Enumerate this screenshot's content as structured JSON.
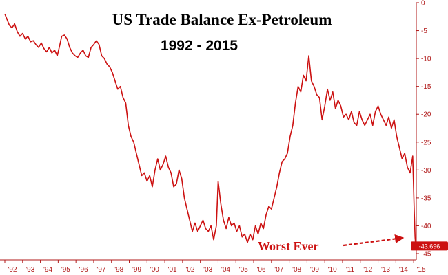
{
  "chart_data": {
    "type": "line",
    "title": "US Trade Balance Ex-Petroleum",
    "subtitle": "1992 - 2015",
    "xlabel": "",
    "ylabel": "",
    "xlim": [
      1992.0,
      2015.15
    ],
    "ylim": [
      -45,
      0
    ],
    "y_ticks": [
      0,
      -5,
      -10,
      -15,
      -20,
      -25,
      -30,
      -35,
      -40,
      -45
    ],
    "x_ticks": [
      {
        "label": "'92",
        "x": 1992.0
      },
      {
        "label": "'93",
        "x": 1993.0
      },
      {
        "label": "'94",
        "x": 1994.0
      },
      {
        "label": "'95",
        "x": 1995.0
      },
      {
        "label": "'96",
        "x": 1996.0
      },
      {
        "label": "'97",
        "x": 1997.0
      },
      {
        "label": "'98",
        "x": 1998.0
      },
      {
        "label": "'99",
        "x": 1999.0
      },
      {
        "label": "'00",
        "x": 2000.0
      },
      {
        "label": "'01",
        "x": 2001.0
      },
      {
        "label": "'02",
        "x": 2002.0
      },
      {
        "label": "'03",
        "x": 2003.0
      },
      {
        "label": "'04",
        "x": 2004.0
      },
      {
        "label": "'05",
        "x": 2005.0
      },
      {
        "label": "'06",
        "x": 2006.0
      },
      {
        "label": "'07",
        "x": 2007.0
      },
      {
        "label": "'08",
        "x": 2008.0
      },
      {
        "label": "'09",
        "x": 2009.0
      },
      {
        "label": "'10",
        "x": 2010.0
      },
      {
        "label": "'11",
        "x": 2011.0
      },
      {
        "label": "'12",
        "x": 2012.0
      },
      {
        "label": "'13",
        "x": 2013.0
      },
      {
        "label": "'14",
        "x": 2014.0
      },
      {
        "label": "'15",
        "x": 2015.0
      }
    ],
    "grid": false,
    "series": [
      {
        "name": "US Trade Balance Ex-Petroleum",
        "color": "#cc1111",
        "x": [
          1992.0,
          1992.1,
          1992.25,
          1992.4,
          1992.55,
          1992.7,
          1992.85,
          1993.0,
          1993.15,
          1993.3,
          1993.45,
          1993.6,
          1993.75,
          1993.9,
          1994.05,
          1994.2,
          1994.35,
          1994.5,
          1994.65,
          1994.8,
          1994.95,
          1995.1,
          1995.2,
          1995.35,
          1995.5,
          1995.65,
          1995.8,
          1995.95,
          1996.1,
          1996.25,
          1996.4,
          1996.55,
          1996.7,
          1996.85,
          1997.0,
          1997.15,
          1997.3,
          1997.45,
          1997.6,
          1997.75,
          1997.9,
          1998.05,
          1998.2,
          1998.35,
          1998.5,
          1998.65,
          1998.8,
          1998.95,
          1999.1,
          1999.25,
          1999.4,
          1999.55,
          1999.7,
          1999.85,
          2000.0,
          2000.15,
          2000.3,
          2000.45,
          2000.6,
          2000.75,
          2000.9,
          2001.05,
          2001.2,
          2001.35,
          2001.5,
          2001.65,
          2001.8,
          2001.95,
          2002.1,
          2002.25,
          2002.4,
          2002.55,
          2002.7,
          2002.85,
          2003.0,
          2003.15,
          2003.3,
          2003.45,
          2003.6,
          2003.75,
          2003.9,
          2004.0,
          2004.15,
          2004.3,
          2004.45,
          2004.6,
          2004.75,
          2004.9,
          2005.05,
          2005.2,
          2005.35,
          2005.5,
          2005.65,
          2005.8,
          2005.95,
          2006.1,
          2006.25,
          2006.4,
          2006.55,
          2006.7,
          2006.85,
          2007.0,
          2007.15,
          2007.3,
          2007.45,
          2007.6,
          2007.75,
          2007.9,
          2008.05,
          2008.2,
          2008.35,
          2008.5,
          2008.65,
          2008.8,
          2008.95,
          2009.1,
          2009.25,
          2009.4,
          2009.55,
          2009.7,
          2009.85,
          2010.0,
          2010.15,
          2010.3,
          2010.45,
          2010.6,
          2010.75,
          2010.9,
          2011.05,
          2011.2,
          2011.35,
          2011.5,
          2011.65,
          2011.8,
          2011.95,
          2012.1,
          2012.25,
          2012.4,
          2012.55,
          2012.7,
          2012.85,
          2013.0,
          2013.15,
          2013.3,
          2013.45,
          2013.6,
          2013.75,
          2013.9,
          2014.05,
          2014.2,
          2014.35,
          2014.5,
          2014.65,
          2014.8,
          2014.95,
          2015.03,
          2015.08,
          2015.12
        ],
        "values": [
          -2.0,
          -2.8,
          -4.0,
          -4.5,
          -3.8,
          -5.2,
          -6.0,
          -5.5,
          -6.5,
          -6.0,
          -7.0,
          -6.8,
          -7.5,
          -8.0,
          -7.2,
          -8.2,
          -8.8,
          -8.0,
          -9.0,
          -8.5,
          -9.5,
          -7.5,
          -6.0,
          -5.8,
          -6.5,
          -8.0,
          -9.0,
          -9.5,
          -9.8,
          -9.0,
          -8.5,
          -9.5,
          -9.8,
          -8.0,
          -7.5,
          -6.8,
          -7.5,
          -9.5,
          -10.0,
          -11.0,
          -11.5,
          -12.5,
          -14.0,
          -15.5,
          -15.0,
          -17.0,
          -18.0,
          -22.0,
          -24.0,
          -25.0,
          -27.0,
          -29.0,
          -31.0,
          -30.5,
          -32.0,
          -31.0,
          -33.0,
          -30.0,
          -28.0,
          -30.0,
          -29.0,
          -27.5,
          -29.5,
          -30.5,
          -33.0,
          -32.5,
          -30.0,
          -31.5,
          -35.0,
          -37.0,
          -39.0,
          -41.0,
          -39.5,
          -41.0,
          -40.0,
          -39.0,
          -40.5,
          -41.0,
          -40.0,
          -42.5,
          -40.0,
          -32.0,
          -36.0,
          -39.0,
          -40.5,
          -38.5,
          -40.0,
          -39.5,
          -41.0,
          -40.0,
          -42.0,
          -41.5,
          -43.0,
          -41.5,
          -42.5,
          -40.0,
          -41.5,
          -39.5,
          -40.5,
          -38.0,
          -36.5,
          -37.0,
          -35.0,
          -33.0,
          -30.5,
          -28.5,
          -28.0,
          -27.0,
          -24.0,
          -22.0,
          -18.0,
          -15.0,
          -16.0,
          -13.0,
          -14.0,
          -9.5,
          -14.0,
          -15.0,
          -16.5,
          -17.0,
          -21.0,
          -18.5,
          -15.5,
          -17.5,
          -16.0,
          -19.0,
          -17.5,
          -18.5,
          -20.5,
          -20.0,
          -21.0,
          -19.5,
          -21.5,
          -22.0,
          -19.5,
          -21.0,
          -22.0,
          -21.0,
          -20.0,
          -22.0,
          -19.5,
          -18.5,
          -20.0,
          -21.0,
          -22.0,
          -20.5,
          -22.5,
          -21.0,
          -24.0,
          -26.0,
          -28.0,
          -27.0,
          -29.5,
          -30.5,
          -27.5,
          -37.0,
          -42.0,
          -43.696
        ]
      }
    ],
    "annotations": {
      "last_value_label": "-43.696",
      "callout_text": "Worst Ever"
    }
  },
  "colors": {
    "line": "#cc1111",
    "axis": "#b01818",
    "badge": "#cc1111"
  }
}
